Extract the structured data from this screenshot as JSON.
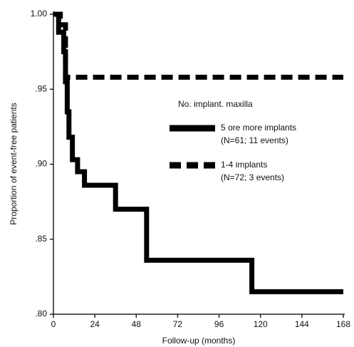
{
  "chart_data": {
    "type": "step",
    "y_label": "Proportion of event-free patients",
    "x_label": "Follow-up (months)",
    "legend_title": "No. implant. maxilla",
    "series": [
      {
        "name": "5 ore more implants",
        "detail": "(N=61; 11 events)",
        "color": "#000000",
        "dash": false,
        "x": [
          0,
          3,
          6,
          7,
          8,
          9,
          11,
          14,
          18,
          36,
          54,
          115,
          168
        ],
        "values": [
          1.0,
          0.988,
          0.975,
          0.955,
          0.935,
          0.918,
          0.903,
          0.895,
          0.886,
          0.87,
          0.836,
          0.815,
          0.815
        ]
      },
      {
        "name": "1-4 implants",
        "detail": "(N=72; 3 events)",
        "color": "#000000",
        "dash": true,
        "x": [
          0,
          4,
          7,
          168
        ],
        "values": [
          1.0,
          0.993,
          0.958,
          0.958
        ]
      }
    ],
    "xlim": [
      0,
      168
    ],
    "xticks": [
      0,
      24,
      48,
      72,
      96,
      120,
      144,
      168
    ],
    "ylim": [
      0.8,
      1.0
    ],
    "yticks": [
      {
        "value": 0.8,
        "label": ".80"
      },
      {
        "value": 0.85,
        "label": ".85"
      },
      {
        "value": 0.9,
        "label": ".90"
      },
      {
        "value": 0.95,
        "label": ".95"
      },
      {
        "value": 1.0,
        "label": "1.00"
      }
    ]
  }
}
